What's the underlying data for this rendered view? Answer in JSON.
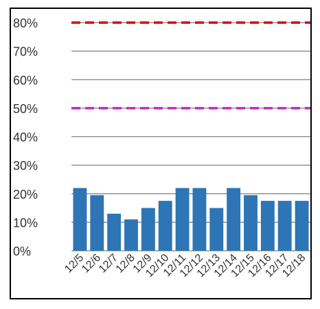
{
  "chart_data": {
    "type": "bar",
    "categories": [
      "12/5",
      "12/6",
      "12/7",
      "12/8",
      "12/9",
      "12/10",
      "12/11",
      "12/12",
      "12/13",
      "12/14",
      "12/15",
      "12/16",
      "12/17",
      "12/18"
    ],
    "values": [
      22,
      19.5,
      13,
      11,
      15,
      17.5,
      22,
      22,
      15,
      22,
      19.5,
      17.5,
      17.5,
      17.5
    ],
    "y_ticks": [
      "0%",
      "10%",
      "20%",
      "30%",
      "40%",
      "50%",
      "60%",
      "70%",
      "80%"
    ],
    "ylim": [
      0,
      80
    ],
    "grid": true,
    "reference_lines": [
      {
        "value": 80,
        "color": "#e00000",
        "style": "dashed"
      },
      {
        "value": 50,
        "color": "#cc22cc",
        "style": "dashed"
      }
    ],
    "bar_color": "#2e75b6",
    "grid_color": "#7f7f7f"
  }
}
